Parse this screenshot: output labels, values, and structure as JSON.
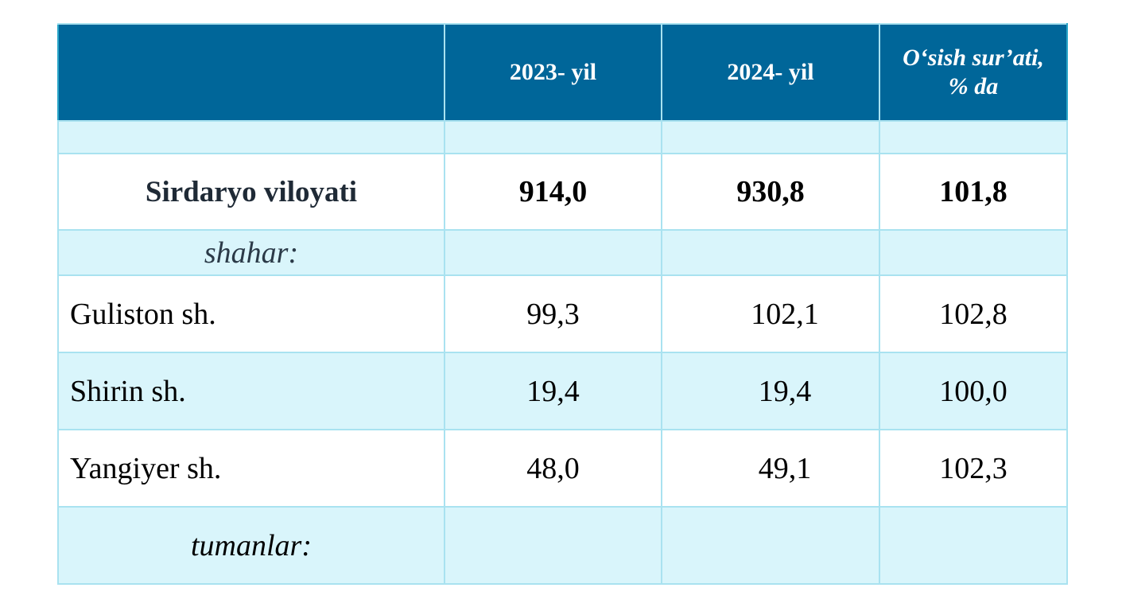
{
  "table": {
    "headers": [
      "",
      "2023- yil",
      "2024- yil",
      "O‘sish sur’ati, % da"
    ],
    "header_growth_line1": "O‘sish sur’ati,",
    "header_growth_line2": "% da",
    "total": {
      "label": "Sirdaryo viloyati",
      "y2023": "914,0",
      "y2024": "930,8",
      "growth": "101,8"
    },
    "cities_group_label": "shahar:",
    "cities": [
      {
        "label": "Guliston sh.",
        "y2023": "99,3",
        "y2024": "102,1",
        "growth": "102,8"
      },
      {
        "label": "Shirin sh.",
        "y2023": "19,4",
        "y2024": "19,4",
        "growth": "100,0"
      },
      {
        "label": "Yangiyer sh.",
        "y2023": "48,0",
        "y2024": "49,1",
        "growth": "102,3"
      }
    ],
    "districts_group_label": "tumanlar:"
  },
  "colors": {
    "header_bg": "#006699",
    "band_bg": "#d9f5fb",
    "border": "#a9e2f0"
  }
}
